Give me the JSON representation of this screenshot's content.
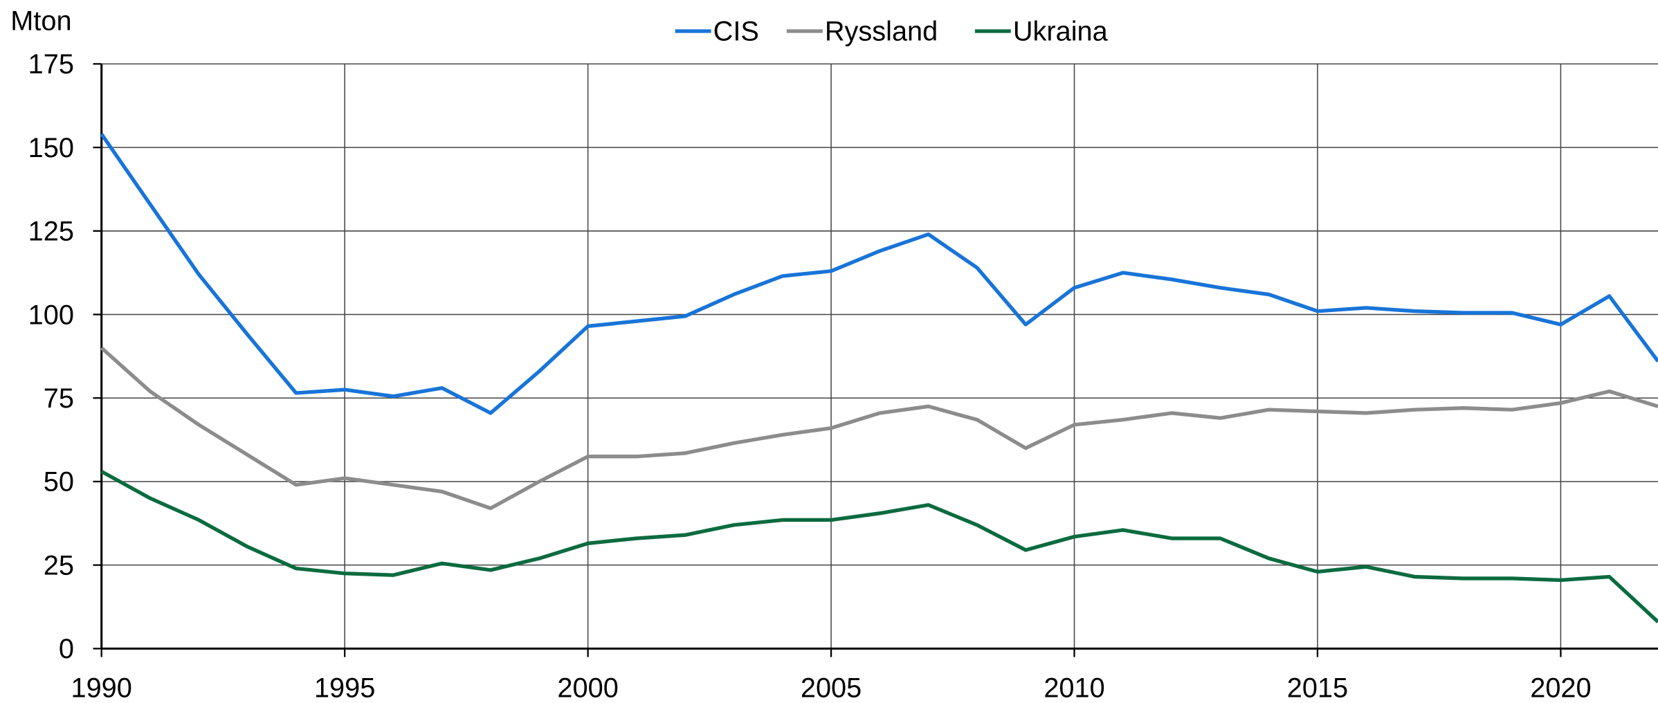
{
  "chart_data": {
    "type": "line",
    "y_label": "Mton",
    "x": [
      1990,
      1991,
      1992,
      1993,
      1994,
      1995,
      1996,
      1997,
      1998,
      1999,
      2000,
      2001,
      2002,
      2003,
      2004,
      2005,
      2006,
      2007,
      2008,
      2009,
      2010,
      2011,
      2012,
      2013,
      2014,
      2015,
      2016,
      2017,
      2018,
      2019,
      2020,
      2021,
      2022
    ],
    "series": [
      {
        "name": "CIS",
        "color": "#1874d8",
        "values": [
          154,
          133,
          112,
          94,
          76.5,
          77.5,
          75.5,
          78,
          70.5,
          83,
          96.5,
          98,
          99.5,
          106,
          111.5,
          113,
          119,
          124,
          114,
          97,
          108,
          112.5,
          110.5,
          108,
          106,
          101,
          102,
          101,
          100.5,
          100.5,
          97,
          105.5,
          86
        ]
      },
      {
        "name": "Ryssland",
        "color": "#8c8c8c",
        "values": [
          90,
          77,
          67,
          58,
          49,
          51,
          49,
          47,
          42,
          50,
          57.5,
          57.5,
          58.5,
          61.5,
          64,
          66,
          70.5,
          72.5,
          68.5,
          60,
          67,
          68.5,
          70.5,
          69,
          71.5,
          71,
          70.5,
          71.5,
          72,
          71.5,
          73.5,
          77,
          72.5
        ]
      },
      {
        "name": "Ukraina",
        "color": "#0b6b3f",
        "values": [
          53,
          45,
          38.5,
          30.5,
          24,
          22.5,
          22,
          25.5,
          23.5,
          27,
          31.5,
          33,
          34,
          37,
          38.5,
          38.5,
          40.5,
          43,
          37,
          29.5,
          33.5,
          35.5,
          33,
          33,
          27,
          23,
          24.5,
          21.5,
          21,
          21,
          20.5,
          21.5,
          8
        ]
      }
    ],
    "xlim": [
      1990,
      2022
    ],
    "xticks": [
      1990,
      1995,
      2000,
      2005,
      2010,
      2015,
      2020
    ],
    "ylim": [
      0,
      175
    ],
    "yticks": [
      0,
      25,
      50,
      75,
      100,
      125,
      150,
      175
    ],
    "grid": true,
    "legend": "top"
  }
}
